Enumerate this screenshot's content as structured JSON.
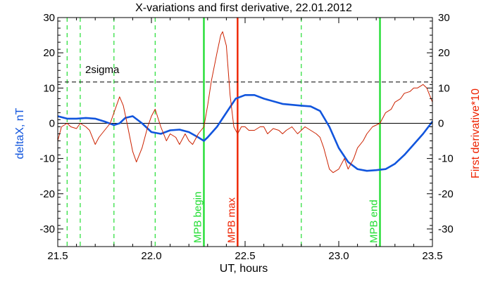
{
  "chart_data": {
    "type": "line",
    "title": "X-variations and first derivative, 22.01.2012",
    "xlabel": "UT, hours",
    "ylabel_left": "deltaX, nT",
    "ylabel_right": "First derivative*10",
    "xlim": [
      21.5,
      23.5
    ],
    "ylim": [
      -35,
      30
    ],
    "x_ticks": [
      "21.5",
      "22.0",
      "22.5",
      "23.0",
      "23.5"
    ],
    "x_tick_values": [
      21.5,
      22.0,
      22.5,
      23.0,
      23.5
    ],
    "y_ticks": [
      "30",
      "20",
      "10",
      "0",
      "-10",
      "-20",
      "-30"
    ],
    "y_tick_values": [
      30,
      20,
      10,
      0,
      -10,
      -20,
      -30
    ],
    "grid": false,
    "colors": {
      "deltaX": "#1155dd",
      "derivative": "#cc2200",
      "green_lines": "#22dd33",
      "red_line": "#ee2200",
      "axes": "#000000",
      "ylabel_left": "#1155dd",
      "ylabel_right": "#ee2200"
    },
    "series": [
      {
        "key": "deltaX",
        "x": [
          21.5,
          21.55,
          21.6,
          21.65,
          21.7,
          21.75,
          21.8,
          21.83,
          21.86,
          21.9,
          21.95,
          22.0,
          22.05,
          22.1,
          22.15,
          22.2,
          22.25,
          22.28,
          22.3,
          22.35,
          22.4,
          22.45,
          22.5,
          22.55,
          22.6,
          22.7,
          22.8,
          22.85,
          22.9,
          22.95,
          23.0,
          23.05,
          23.1,
          23.15,
          23.2,
          23.25,
          23.3,
          23.35,
          23.4,
          23.45,
          23.5
        ],
        "values": [
          2,
          1.3,
          1.3,
          1.5,
          1.3,
          0.5,
          -0.5,
          0,
          1.5,
          2,
          0,
          -2.5,
          -3,
          -2,
          -1.8,
          -2.5,
          -4,
          -5,
          -4,
          -1,
          3,
          7,
          8,
          8,
          7,
          5.5,
          5,
          4.8,
          3.5,
          -1,
          -7,
          -11,
          -13,
          -13.5,
          -13.3,
          -13,
          -11.5,
          -9,
          -6,
          -3,
          0.5
        ]
      },
      {
        "key": "derivative",
        "x": [
          21.5,
          21.52,
          21.55,
          21.57,
          21.6,
          21.62,
          21.65,
          21.67,
          21.7,
          21.72,
          21.75,
          21.78,
          21.8,
          21.83,
          21.85,
          21.87,
          21.9,
          21.92,
          21.95,
          21.98,
          22.0,
          22.02,
          22.05,
          22.08,
          22.1,
          22.13,
          22.15,
          22.18,
          22.2,
          22.22,
          22.25,
          22.28,
          22.3,
          22.32,
          22.35,
          22.37,
          22.38,
          22.4,
          22.42,
          22.44,
          22.46,
          22.48,
          22.5,
          22.52,
          22.55,
          22.58,
          22.6,
          22.62,
          22.65,
          22.68,
          22.7,
          22.72,
          22.75,
          22.78,
          22.8,
          22.82,
          22.85,
          22.88,
          22.9,
          22.92,
          22.95,
          22.97,
          23.0,
          23.03,
          23.05,
          23.08,
          23.1,
          23.13,
          23.15,
          23.18,
          23.2,
          23.22,
          23.25,
          23.28,
          23.3,
          23.33,
          23.35,
          23.38,
          23.4,
          23.42,
          23.45,
          23.47,
          23.5
        ],
        "values": [
          -5,
          -1,
          0,
          -1,
          -1.5,
          0,
          -1,
          -2,
          -6,
          -4,
          -2,
          0,
          3,
          7.5,
          5,
          0,
          -8,
          -11,
          -7,
          -1,
          2,
          4,
          -1,
          -5,
          -3,
          -4,
          -6,
          -3,
          -5,
          -6,
          -3,
          -1,
          5,
          12,
          20,
          25,
          26,
          22,
          8,
          -1,
          -3,
          -1,
          -1,
          -2,
          -2,
          -1,
          -1,
          -3,
          -1.5,
          -2,
          -3,
          -2,
          -1,
          -3,
          -2,
          -1,
          -2,
          -3,
          -4,
          -7,
          -13,
          -14,
          -13,
          -10,
          -13,
          -10,
          -7,
          -5,
          -3,
          -1,
          -0.5,
          0,
          3,
          4,
          6,
          7,
          8.5,
          9,
          10,
          10,
          11,
          10,
          6
        ]
      }
    ],
    "hlines": [
      {
        "y": 11.7,
        "style": "dashed",
        "label": "2sigma"
      },
      {
        "y": 0,
        "style": "solid"
      }
    ],
    "vlines": [
      {
        "x": 21.55,
        "color": "green",
        "style": "dashed"
      },
      {
        "x": 21.62,
        "color": "green",
        "style": "dashed"
      },
      {
        "x": 21.8,
        "color": "green",
        "style": "dashed"
      },
      {
        "x": 22.02,
        "color": "green",
        "style": "dashed"
      },
      {
        "x": 22.8,
        "color": "green",
        "style": "dashed"
      },
      {
        "x": 22.28,
        "color": "green",
        "style": "solid",
        "label": "MPB begin"
      },
      {
        "x": 22.46,
        "color": "red",
        "style": "solid",
        "label": "MPB max"
      },
      {
        "x": 23.22,
        "color": "green",
        "style": "solid",
        "label": "MPB end"
      }
    ]
  }
}
